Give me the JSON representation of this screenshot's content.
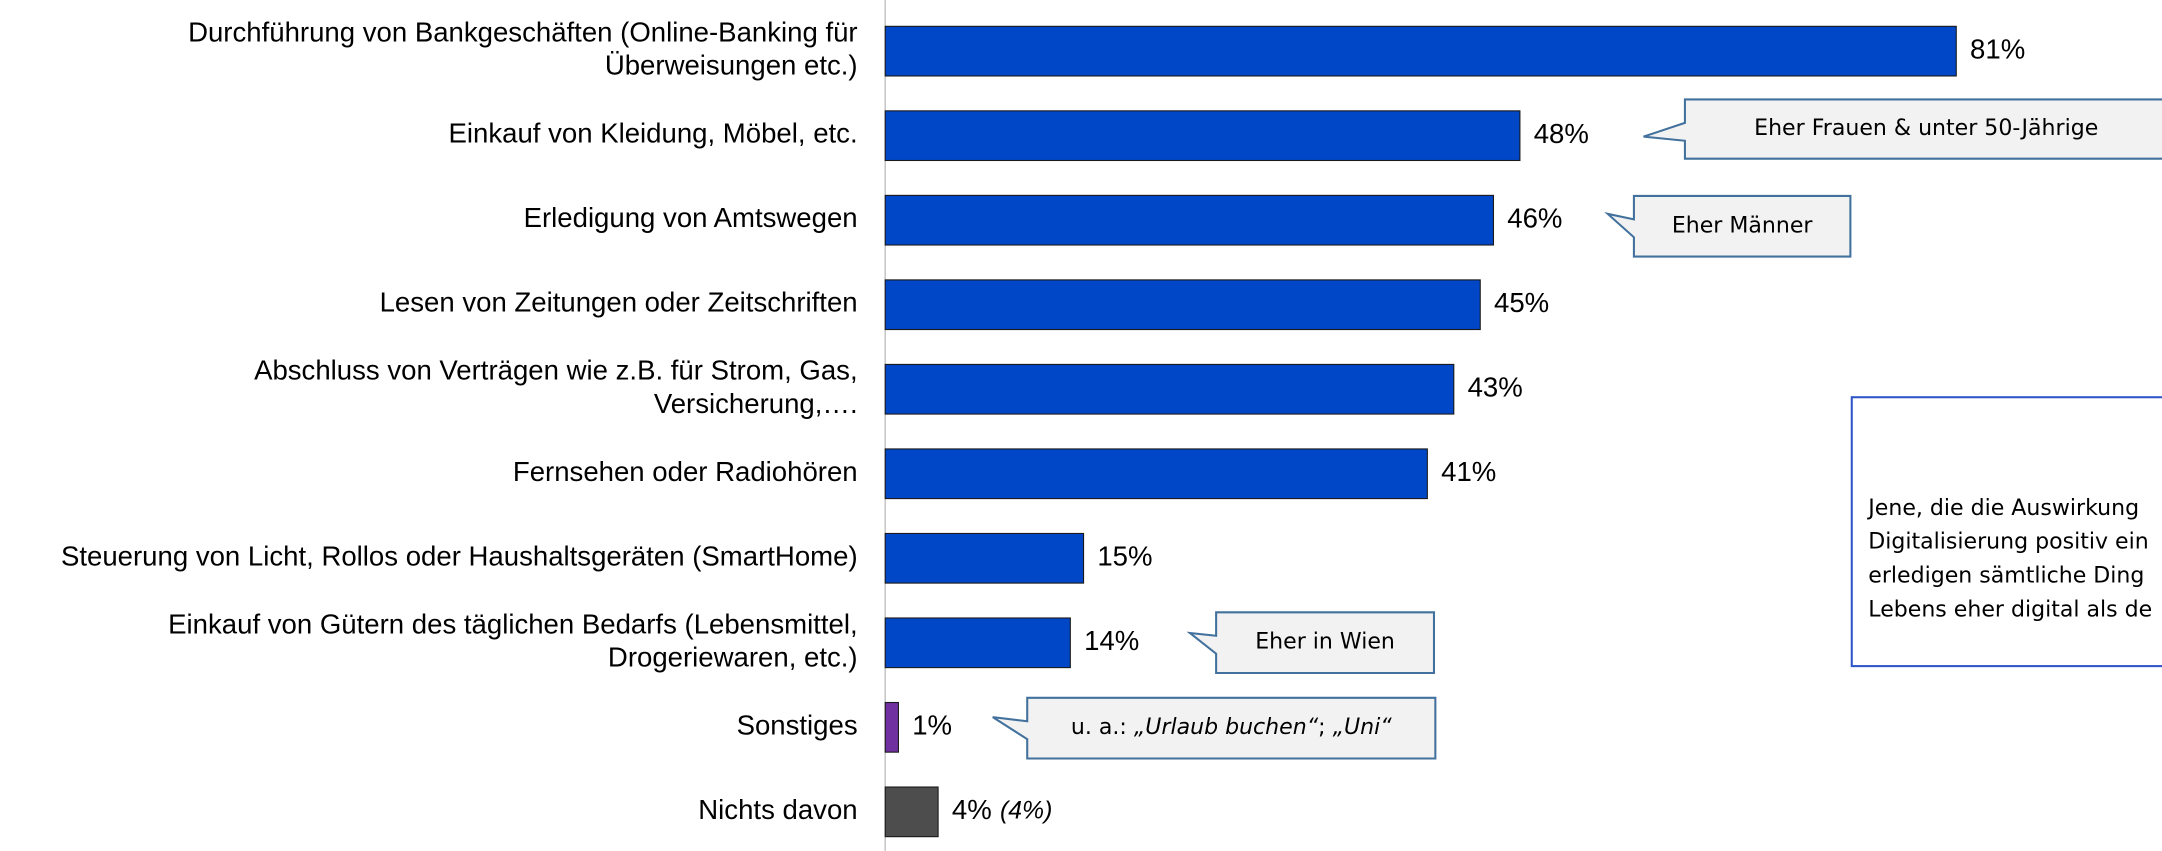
{
  "chart_data": {
    "type": "bar",
    "orientation": "horizontal",
    "categories": [
      "Durchführung von Bankgeschäften (Online-Banking für\nÜberweisungen etc.)",
      "Einkauf von Kleidung, Möbel, etc.",
      "Erledigung von Amtswegen",
      "Lesen von Zeitungen oder Zeitschriften",
      "Abschluss von Verträgen wie z.B. für Strom, Gas,\nVersicherung,….",
      "Fernsehen oder Radiohören",
      "Steuerung von Licht, Rollos oder Haushaltsgeräten (SmartHome)",
      "Einkauf von Gütern des täglichen Bedarfs (Lebensmittel,\nDrogeriewaren, etc.)",
      "Sonstiges",
      "Nichts davon"
    ],
    "values": [
      81,
      48,
      46,
      45,
      43,
      41,
      15,
      14,
      1,
      4
    ],
    "value_labels": [
      "81%",
      "48%",
      "46%",
      "45%",
      "43%",
      "41%",
      "15%",
      "14%",
      "1%",
      "4%"
    ],
    "previous_value_labels": [
      null,
      null,
      null,
      null,
      null,
      null,
      null,
      null,
      null,
      "(4%)"
    ],
    "colors": [
      "#0047c8",
      "#0047c8",
      "#0047c8",
      "#0047c8",
      "#0047c8",
      "#0047c8",
      "#0047c8",
      "#0047c8",
      "#7030a0",
      "#4d4d4d"
    ],
    "callouts": [
      [
        {
          "text": "Eher Frauen & unter 50-Jährige"
        }
      ],
      [
        {
          "text": "Eher Männer"
        }
      ],
      [
        {
          "text": "Eher in Wien"
        }
      ],
      [
        {
          "text": "u. a.: "
        },
        {
          "text": "„Urlaub buchen“",
          "italic": true
        },
        {
          "text": "; "
        },
        {
          "text": "„Uni“",
          "italic": true
        }
      ]
    ],
    "note": [
      "Jene, die die Auswirkung",
      "Digitalisierung positiv ein",
      "erledigen sämtliche Ding",
      "Lebens eher digital als de"
    ]
  }
}
